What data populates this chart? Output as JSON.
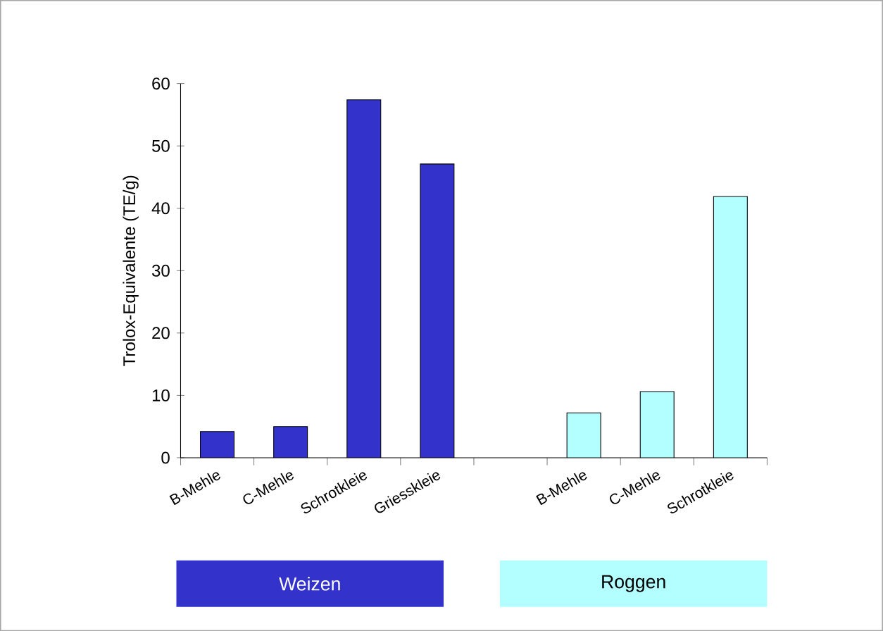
{
  "chart_data": {
    "type": "bar",
    "ylabel": "Trolox-Equivalente (TE/g)",
    "categories": [
      "B-Mehle",
      "C-Mehle",
      "Schrotkleie",
      "Griesskleie",
      null,
      "B-Mehle",
      "C-Mehle",
      "Schrotkleie"
    ],
    "series": [
      {
        "name": "Weizen",
        "color": "#3333cc",
        "values": [
          4.2,
          5.0,
          57.4,
          47.1,
          null,
          null,
          null,
          null
        ]
      },
      {
        "name": "Roggen",
        "color": "#b3ffff",
        "values": [
          null,
          null,
          null,
          null,
          null,
          7.2,
          10.6,
          41.9
        ]
      }
    ],
    "ylim": [
      0,
      60
    ],
    "yticks": [
      0,
      10,
      20,
      30,
      40,
      50,
      60
    ],
    "grid": false,
    "legend": "bottom"
  }
}
